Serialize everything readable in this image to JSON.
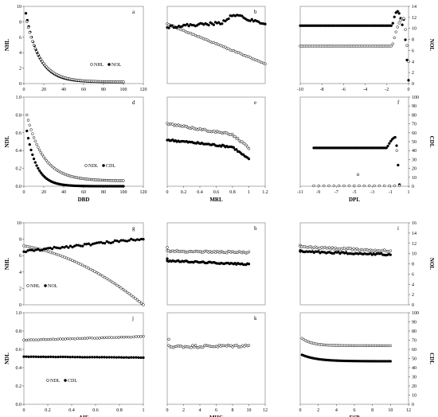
{
  "chart_data": [
    {
      "id": "a",
      "type": "scatter",
      "letter": "a",
      "xlim": [
        0,
        120
      ],
      "ylim": [
        0,
        10
      ],
      "xticks": [
        "0",
        "20",
        "40",
        "60",
        "80",
        "100",
        "120"
      ],
      "yticks": [
        "0",
        "2",
        "4",
        "6",
        "8",
        "10"
      ],
      "xlabel": "",
      "ylabel": "NHL",
      "legend": [
        {
          "label": "NHL",
          "marker": "open"
        },
        {
          "label": "NOL",
          "marker": "filled"
        }
      ],
      "series": [
        {
          "marker": "filled",
          "fn": "decay",
          "params": {
            "x0": 2,
            "x1": 100,
            "y0": 9.1,
            "yinf": 0.2,
            "k": 0.075,
            "n": 70
          }
        },
        {
          "marker": "open",
          "fn": "decay",
          "params": {
            "x0": 3,
            "x1": 100,
            "y0": 8.0,
            "yinf": 0.22,
            "k": 0.07,
            "n": 70
          }
        }
      ]
    },
    {
      "id": "b",
      "type": "scatter",
      "letter": "b",
      "xlim": [
        0,
        1
      ],
      "ylim": [
        0,
        14
      ],
      "xticks": [],
      "yticks": [],
      "xlabel": "",
      "ylabel": "",
      "series": [
        {
          "marker": "open",
          "fn": "linear",
          "params": {
            "x0": 0,
            "x1": 1,
            "y0": 10.8,
            "y1": 3.6,
            "n": 60
          }
        },
        {
          "marker": "filled",
          "fn": "rise",
          "params": {
            "x0": 0,
            "x1": 1,
            "n": 60
          }
        }
      ]
    },
    {
      "id": "c",
      "type": "scatter",
      "letter": "c",
      "xlim": [
        -10,
        0
      ],
      "ylim": [
        0,
        14
      ],
      "xticks": [
        "-10",
        "-8",
        "-6",
        "-4",
        "-2",
        "0"
      ],
      "yticks": [
        "0",
        "2",
        "4",
        "6",
        "8",
        "10",
        "12",
        "14"
      ],
      "xlabel": "",
      "ylabel": "NOL",
      "yaxis": "right",
      "series": [
        {
          "marker": "filled",
          "fn": "flatPeak",
          "params": {
            "x0": -10,
            "x1": 0,
            "y": 10.5,
            "n": 70
          }
        },
        {
          "marker": "open",
          "fn": "flatPeakOpen",
          "params": {
            "x0": -10,
            "x1": 0,
            "y": 6.8,
            "n": 70
          }
        }
      ]
    },
    {
      "id": "d",
      "type": "scatter",
      "letter": "d",
      "xlim": [
        0,
        120
      ],
      "ylim": [
        0,
        1
      ],
      "xticks": [
        "0",
        "20",
        "40",
        "60",
        "80",
        "100",
        "120"
      ],
      "yticks": [
        "0.0",
        "0.2",
        "0.4",
        "0.6",
        "0.8",
        "1.0"
      ],
      "xlabel": "DBD",
      "ylabel": "NDL",
      "legend": [
        {
          "label": "NDL",
          "marker": "open"
        },
        {
          "label": "CDL",
          "marker": "filled"
        }
      ],
      "series": [
        {
          "marker": "open",
          "fn": "decay",
          "params": {
            "x0": 3,
            "x1": 100,
            "y0": 0.8,
            "yinf": 0.06,
            "k": 0.06,
            "n": 70
          }
        },
        {
          "marker": "filled",
          "fn": "decay",
          "params": {
            "x0": 3,
            "x1": 100,
            "y0": 0.62,
            "yinf": 0.0,
            "k": 0.1,
            "n": 70
          }
        }
      ]
    },
    {
      "id": "e",
      "type": "scatter",
      "letter": "e",
      "xlim": [
        0,
        1.2
      ],
      "ylim": [
        0,
        1
      ],
      "xticks": [
        "0",
        "0.2",
        "0.4",
        "0.6",
        "0.8",
        "1",
        "1.2"
      ],
      "yticks": [],
      "xlabel": "MRL",
      "ylabel": "",
      "series": [
        {
          "marker": "open",
          "fn": "dropEnd",
          "params": {
            "x0": 0,
            "x1": 1,
            "y0": 0.7,
            "y1": 0.55,
            "drop": 0.12,
            "n": 60
          }
        },
        {
          "marker": "filled",
          "fn": "dropEnd",
          "params": {
            "x0": 0,
            "x1": 1,
            "y0": 0.52,
            "y1": 0.42,
            "drop": 0.12,
            "n": 60
          }
        }
      ]
    },
    {
      "id": "f",
      "type": "scatter",
      "letter": "f",
      "xlim": [
        -11,
        1
      ],
      "ylim": [
        0,
        100
      ],
      "xticks": [
        "-11",
        "-9",
        "-7",
        "-5",
        "-3",
        "-1",
        "1"
      ],
      "yticks": [
        "0",
        "10",
        "20",
        "30",
        "40",
        "50",
        "60",
        "70",
        "80",
        "90",
        "100"
      ],
      "xlabel": "DPL",
      "ylabel": "CDL",
      "yaxis": "right",
      "series": [
        {
          "marker": "filled",
          "fn": "flatPeakF",
          "params": {
            "x0": -9.5,
            "x1": 0,
            "y": 43,
            "n": 60
          }
        },
        {
          "marker": "open",
          "fn": "zeroLine",
          "params": {
            "x0": -9.5,
            "x1": 0,
            "n": 18
          }
        }
      ]
    },
    {
      "id": "g",
      "type": "scatter",
      "letter": "g",
      "xlim": [
        0,
        1
      ],
      "ylim": [
        0,
        10
      ],
      "xticks": [],
      "yticks": [
        "0",
        "2",
        "4",
        "6",
        "8",
        "10"
      ],
      "xlabel": "",
      "ylabel": "NHL",
      "legend": [
        {
          "label": "NHL",
          "marker": "open"
        },
        {
          "label": "NOL",
          "marker": "filled"
        }
      ],
      "series": [
        {
          "marker": "open",
          "fn": "quadDown",
          "params": {
            "x0": 0,
            "x1": 1,
            "y0": 7.2,
            "y1": 0,
            "n": 60
          }
        },
        {
          "marker": "filled",
          "fn": "linearNoise",
          "params": {
            "x0": 0,
            "x1": 1,
            "y0": 6.5,
            "y1": 8.1,
            "n": 60
          }
        }
      ]
    },
    {
      "id": "h",
      "type": "scatter",
      "letter": "h",
      "xlim": [
        0,
        12
      ],
      "ylim": [
        0,
        16
      ],
      "xticks": [],
      "yticks": [],
      "xlabel": "",
      "ylabel": "",
      "series": [
        {
          "marker": "open",
          "fn": "flatNoise",
          "params": {
            "x0": 0,
            "x1": 10,
            "y0": 10.5,
            "y1": 10.2,
            "n": 60,
            "first": 11.2
          }
        },
        {
          "marker": "filled",
          "fn": "flatNoise",
          "params": {
            "x0": 0,
            "x1": 10,
            "y0": 8.6,
            "y1": 7.9,
            "n": 60,
            "first": 9.0
          }
        }
      ]
    },
    {
      "id": "i",
      "type": "scatter",
      "letter": "i",
      "xlim": [
        0,
        12
      ],
      "ylim": [
        0,
        16
      ],
      "xticks": [],
      "yticks": [
        "0",
        "2",
        "4",
        "6",
        "8",
        "10",
        "12",
        "14",
        "16"
      ],
      "xlabel": "",
      "ylabel": "NOL",
      "yaxis": "right",
      "series": [
        {
          "marker": "open",
          "fn": "flatNoise",
          "params": {
            "x0": 0,
            "x1": 10,
            "y0": 11.3,
            "y1": 10.5,
            "n": 60,
            "first": 11.6
          }
        },
        {
          "marker": "filled",
          "fn": "flatNoise",
          "params": {
            "x0": 0,
            "x1": 10,
            "y0": 10.4,
            "y1": 9.8,
            "n": 60,
            "first": 10.6
          }
        }
      ]
    },
    {
      "id": "j",
      "type": "scatter",
      "letter": "j",
      "xlim": [
        0,
        1
      ],
      "ylim": [
        0,
        1
      ],
      "xticks": [
        "0",
        "0.2",
        "0.4",
        "0.6",
        "0.8",
        "1"
      ],
      "yticks": [
        "0.0",
        "0.2",
        "0.4",
        "0.6",
        "0.8",
        "1.0"
      ],
      "xlabel": "AIF",
      "ylabel": "NDL",
      "legend": [
        {
          "label": "NDL",
          "marker": "open"
        },
        {
          "label": "CDL",
          "marker": "filled"
        }
      ],
      "series": [
        {
          "marker": "open",
          "fn": "linearNoise",
          "params": {
            "x0": 0,
            "x1": 1,
            "y0": 0.7,
            "y1": 0.74,
            "n": 50
          }
        },
        {
          "marker": "filled",
          "fn": "linearNoise",
          "params": {
            "x0": 0,
            "x1": 1,
            "y0": 0.52,
            "y1": 0.51,
            "n": 50
          }
        }
      ]
    },
    {
      "id": "k",
      "type": "scatter",
      "letter": "k",
      "xlim": [
        0,
        12
      ],
      "ylim": [
        0,
        1
      ],
      "xticks": [
        "0",
        "2",
        "4",
        "6",
        "8",
        "10",
        "12"
      ],
      "yticks": [],
      "xlabel": "MHC",
      "ylabel": "",
      "series": [
        {
          "marker": "open",
          "fn": "flatNoise",
          "params": {
            "x0": 0.2,
            "x1": 10,
            "y0": 0.63,
            "y1": 0.64,
            "n": 55,
            "first": 0.71
          }
        }
      ]
    },
    {
      "id": "l",
      "type": "scatter",
      "letter": "",
      "xlim": [
        0,
        12
      ],
      "ylim": [
        0,
        100
      ],
      "xticks": [
        "0",
        "2",
        "4",
        "6",
        "8",
        "10",
        "12"
      ],
      "yticks": [
        "0",
        "10",
        "20",
        "30",
        "40",
        "50",
        "60",
        "70",
        "80",
        "90",
        "100"
      ],
      "xlabel": "ESP",
      "ylabel": "CDL",
      "yaxis": "right",
      "series": [
        {
          "marker": "open",
          "fn": "decay",
          "params": {
            "x0": 0.2,
            "x1": 10,
            "y0": 72,
            "yinf": 64,
            "k": 0.9,
            "n": 55
          }
        },
        {
          "marker": "filled",
          "fn": "decay",
          "params": {
            "x0": 0.2,
            "x1": 10,
            "y0": 54,
            "yinf": 47,
            "k": 0.6,
            "n": 55
          }
        }
      ]
    }
  ]
}
